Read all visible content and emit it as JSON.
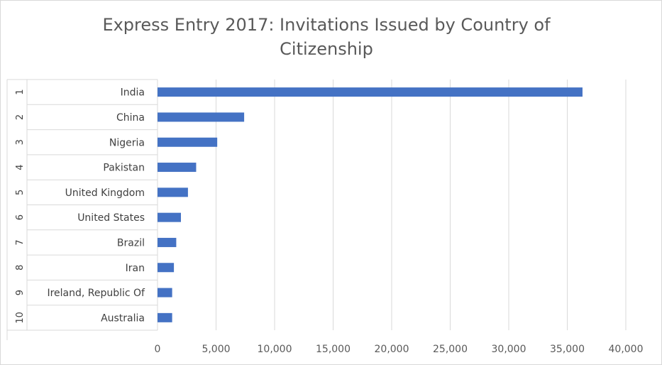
{
  "chart_data": {
    "type": "bar",
    "orientation": "horizontal",
    "title": "Express Entry 2017: Invitations Issued by Country of Citizenship",
    "ranks": [
      "1",
      "2",
      "3",
      "4",
      "5",
      "6",
      "7",
      "8",
      "9",
      "10"
    ],
    "categories": [
      "India",
      "China",
      "Nigeria",
      "Pakistan",
      "United Kingdom",
      "United States",
      "Brazil",
      "Iran",
      "Ireland, Republic Of",
      "Australia"
    ],
    "values": [
      36300,
      7400,
      5100,
      3300,
      2600,
      2000,
      1600,
      1400,
      1250,
      1250
    ],
    "xlim": [
      0,
      40000
    ],
    "xticks": [
      0,
      5000,
      10000,
      15000,
      20000,
      25000,
      30000,
      35000,
      40000
    ],
    "xtick_labels": [
      "0",
      "5,000",
      "10,000",
      "15,000",
      "20,000",
      "25,000",
      "30,000",
      "35,000",
      "40,000"
    ],
    "grid": true,
    "legend": "none",
    "colors": {
      "bar": "#4472c4",
      "grid": "#d9d9d9",
      "text": "#595959"
    }
  }
}
